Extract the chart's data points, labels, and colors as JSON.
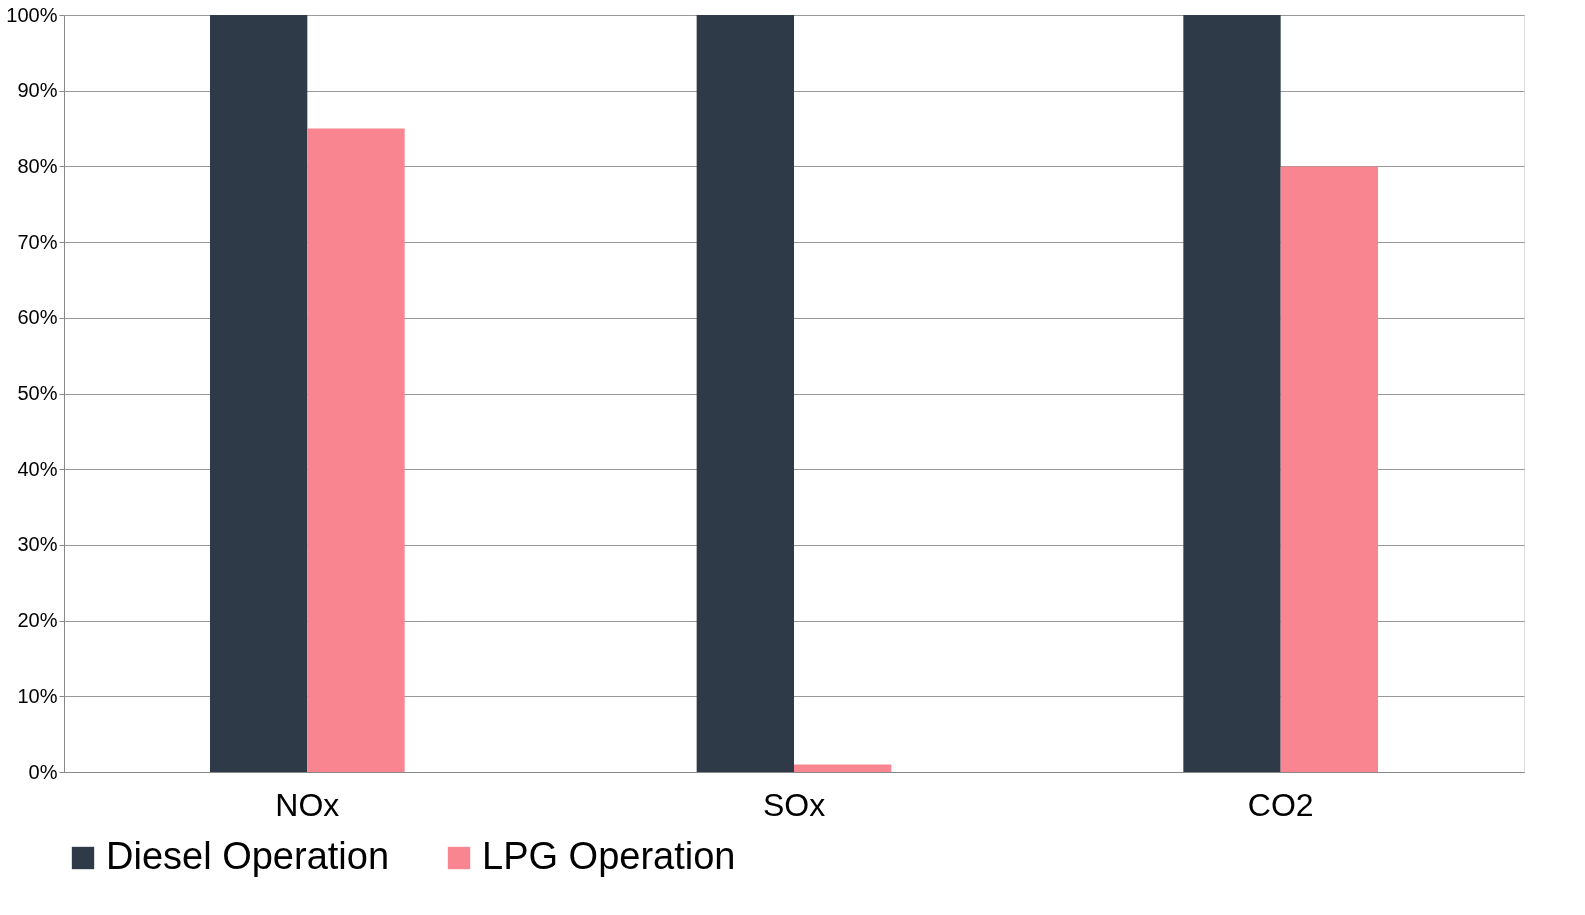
{
  "chart_data": {
    "type": "bar",
    "categories": [
      "NOx",
      "SOx",
      "CO2"
    ],
    "series": [
      {
        "name": "Diesel Operation",
        "color": "#2e3a48",
        "values": [
          100,
          100,
          100
        ]
      },
      {
        "name": "LPG Operation",
        "color": "#f88590",
        "values": [
          85,
          1,
          80
        ]
      }
    ],
    "ylim": [
      0,
      100
    ],
    "yticks": [
      {
        "value": 0,
        "label": "0%"
      },
      {
        "value": 10,
        "label": "10%"
      },
      {
        "value": 20,
        "label": "20%"
      },
      {
        "value": 30,
        "label": "30%"
      },
      {
        "value": 40,
        "label": "40%"
      },
      {
        "value": 50,
        "label": "50%"
      },
      {
        "value": 60,
        "label": "60%"
      },
      {
        "value": 70,
        "label": "70%"
      },
      {
        "value": 80,
        "label": "80%"
      },
      {
        "value": 90,
        "label": "90%"
      },
      {
        "value": 100,
        "label": "100%"
      }
    ],
    "grid": "y",
    "legend": "bottom"
  }
}
